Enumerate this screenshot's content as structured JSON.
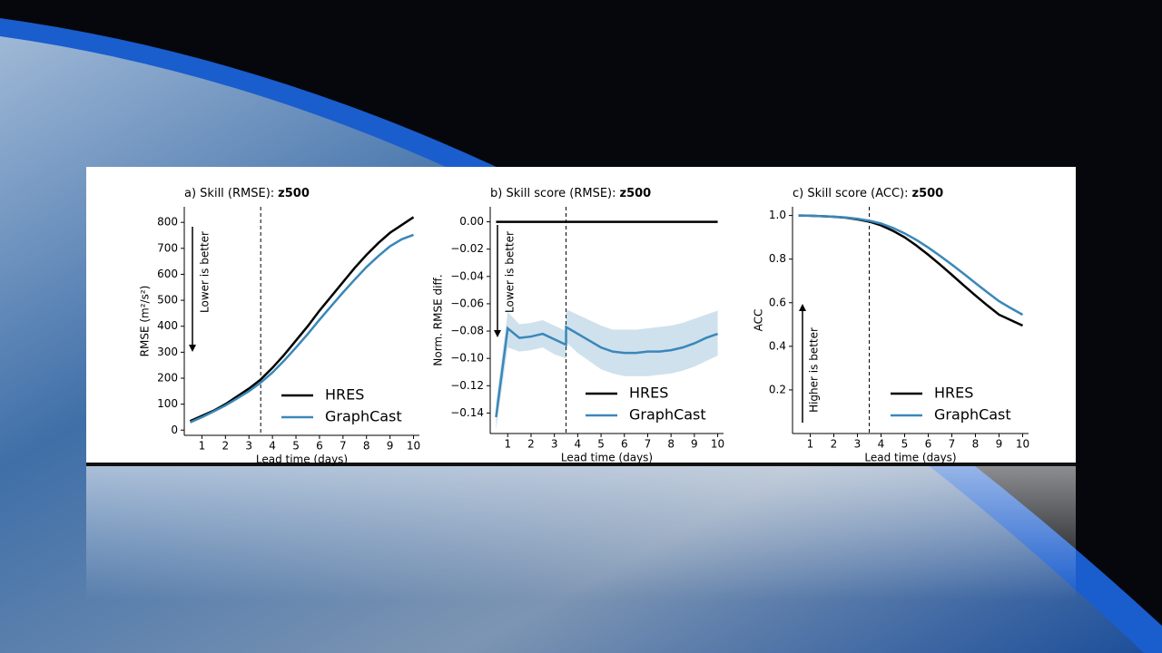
{
  "chart_data": [
    {
      "type": "line",
      "title": "a) Skill (RMSE):",
      "title_variable": "z500",
      "x_label": "Lead time (days)",
      "y_label": "RMSE (m²/s²)",
      "annotation": "Lower is better",
      "x": [
        0.5,
        1,
        1.5,
        2,
        2.5,
        3,
        3.5,
        4,
        4.5,
        5,
        5.5,
        6,
        6.5,
        7,
        7.5,
        8,
        8.5,
        9,
        9.5,
        10
      ],
      "series": [
        {
          "name": "HRES",
          "color": "#000000",
          "values": [
            35,
            55,
            75,
            100,
            130,
            160,
            195,
            240,
            290,
            345,
            400,
            460,
            515,
            570,
            625,
            675,
            720,
            760,
            790,
            820
          ]
        },
        {
          "name": "GraphCast",
          "color": "#3a87b9",
          "values": [
            30,
            50,
            72,
            95,
            122,
            150,
            183,
            222,
            268,
            318,
            370,
            425,
            478,
            530,
            580,
            628,
            670,
            708,
            735,
            752
          ]
        }
      ],
      "xlim": [
        0.25,
        10.25
      ],
      "xticks": [
        1,
        2,
        3,
        4,
        5,
        6,
        7,
        8,
        9,
        10
      ],
      "ylim": [
        -20,
        860
      ],
      "yticks": [
        0,
        100,
        200,
        300,
        400,
        500,
        600,
        700,
        800
      ],
      "vline": 3.5,
      "legend": "lower right"
    },
    {
      "type": "line",
      "title": "b) Skill score (RMSE):",
      "title_variable": "z500",
      "x_label": "Lead time (days)",
      "y_label": "Norm. RMSE diff.",
      "annotation": "Lower is better",
      "x": [
        0.5,
        1,
        1.5,
        2,
        2.5,
        3,
        3.5,
        3.5,
        4,
        4.5,
        5,
        5.5,
        6,
        6.5,
        7,
        7.5,
        8,
        8.5,
        9,
        9.5,
        10
      ],
      "series": [
        {
          "name": "HRES",
          "color": "#000000",
          "values": [
            0,
            0,
            0,
            0,
            0,
            0,
            0,
            0,
            0,
            0,
            0,
            0,
            0,
            0,
            0,
            0,
            0,
            0,
            0,
            0,
            0
          ]
        },
        {
          "name": "GraphCast",
          "color": "#3a87b9",
          "values": [
            -0.143,
            -0.078,
            -0.085,
            -0.084,
            -0.082,
            -0.086,
            -0.09,
            -0.077,
            -0.082,
            -0.087,
            -0.092,
            -0.095,
            -0.096,
            -0.096,
            -0.095,
            -0.095,
            -0.094,
            -0.092,
            -0.089,
            -0.085,
            -0.082
          ],
          "lower": [
            -0.152,
            -0.092,
            -0.095,
            -0.094,
            -0.092,
            -0.097,
            -0.1,
            -0.088,
            -0.096,
            -0.102,
            -0.108,
            -0.111,
            -0.113,
            -0.113,
            -0.113,
            -0.112,
            -0.111,
            -0.109,
            -0.106,
            -0.102,
            -0.098
          ],
          "upper": [
            -0.132,
            -0.066,
            -0.075,
            -0.074,
            -0.072,
            -0.076,
            -0.08,
            -0.064,
            -0.068,
            -0.072,
            -0.076,
            -0.079,
            -0.079,
            -0.079,
            -0.078,
            -0.077,
            -0.076,
            -0.074,
            -0.071,
            -0.068,
            -0.065
          ]
        }
      ],
      "xlim": [
        0.25,
        10.25
      ],
      "xticks": [
        1,
        2,
        3,
        4,
        5,
        6,
        7,
        8,
        9,
        10
      ],
      "ylim": [
        -0.155,
        0.011
      ],
      "yticks": [
        {
          "value": 0,
          "label": "0.00"
        },
        {
          "value": -0.02,
          "label": "−0.02"
        },
        {
          "value": -0.04,
          "label": "−0.04"
        },
        {
          "value": -0.06,
          "label": "−0.06"
        },
        {
          "value": -0.08,
          "label": "−0.08"
        },
        {
          "value": -0.1,
          "label": "−0.10"
        },
        {
          "value": -0.12,
          "label": "−0.12"
        },
        {
          "value": -0.14,
          "label": "−0.14"
        }
      ],
      "vline": 3.5,
      "legend": "lower right"
    },
    {
      "type": "line",
      "title": "c) Skill score (ACC):",
      "title_variable": "z500",
      "x_label": "Lead time (days)",
      "y_label": "ACC",
      "annotation": "Higher is better",
      "x": [
        0.5,
        1,
        1.5,
        2,
        2.5,
        3,
        3.5,
        4,
        4.5,
        5,
        5.5,
        6,
        6.5,
        7,
        7.5,
        8,
        8.5,
        9,
        9.5,
        10
      ],
      "series": [
        {
          "name": "HRES",
          "color": "#000000",
          "values": [
            1,
            0.999,
            0.997,
            0.994,
            0.99,
            0.982,
            0.972,
            0.955,
            0.93,
            0.9,
            0.862,
            0.82,
            0.775,
            0.728,
            0.68,
            0.633,
            0.588,
            0.545,
            0.52,
            0.495
          ]
        },
        {
          "name": "GraphCast",
          "color": "#3a87b9",
          "values": [
            1,
            0.999,
            0.997,
            0.995,
            0.991,
            0.985,
            0.976,
            0.963,
            0.943,
            0.918,
            0.888,
            0.853,
            0.815,
            0.775,
            0.733,
            0.69,
            0.648,
            0.607,
            0.575,
            0.545
          ]
        }
      ],
      "xlim": [
        0.25,
        10.25
      ],
      "xticks": [
        1,
        2,
        3,
        4,
        5,
        6,
        7,
        8,
        9,
        10
      ],
      "ylim": [
        0,
        1.04
      ],
      "yticks": [
        0.2,
        0.4,
        0.6,
        0.8,
        {
          "value": 1,
          "label": "1.0"
        }
      ],
      "vline": 3.5,
      "legend": "lower right"
    }
  ]
}
